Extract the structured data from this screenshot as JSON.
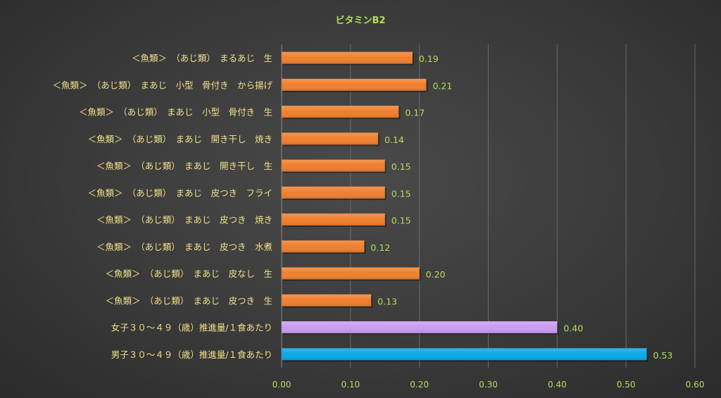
{
  "chart_data": {
    "type": "bar",
    "orientation": "horizontal",
    "title": "ビタミンB2",
    "categories": [
      "＜魚類＞　（あじ類）　まるあじ　生",
      "＜魚類＞　（あじ類）　まあじ　小型　骨付き　から揚げ",
      "＜魚類＞　（あじ類）　まあじ　小型　骨付き　生",
      "＜魚類＞　（あじ類）　まあじ　開き干し　焼き",
      "＜魚類＞　（あじ類）　まあじ　開き干し　生",
      "＜魚類＞　（あじ類）　まあじ　皮つき　フライ",
      "＜魚類＞　（あじ類）　まあじ　皮つき　焼き",
      "＜魚類＞　（あじ類）　まあじ　皮つき　水煮",
      "＜魚類＞　（あじ類）　まあじ　皮なし　生",
      "＜魚類＞　（あじ類）　まあじ　皮つき　生",
      "女子３０～４９（歳）推進量/１食あたり",
      "男子３０～４９（歳）推進量/１食あたり"
    ],
    "values": [
      0.19,
      0.21,
      0.17,
      0.14,
      0.15,
      0.15,
      0.15,
      0.12,
      0.2,
      0.13,
      0.4,
      0.53
    ],
    "value_labels": [
      "0.19",
      "0.21",
      "0.17",
      "0.14",
      "0.15",
      "0.15",
      "0.15",
      "0.12",
      "0.20",
      "0.13",
      "0.40",
      "0.53"
    ],
    "bar_colors": [
      "#f07f2e",
      "#f07f2e",
      "#f07f2e",
      "#f07f2e",
      "#f07f2e",
      "#f07f2e",
      "#f07f2e",
      "#f07f2e",
      "#f07f2e",
      "#f07f2e",
      "#c99cf2",
      "#0aa8e8"
    ],
    "xlim": [
      0,
      0.6
    ],
    "x_ticks": [
      "0.00",
      "0.10",
      "0.20",
      "0.30",
      "0.40",
      "0.50",
      "0.60"
    ],
    "grid": true,
    "legend": "none",
    "colors": {
      "title": "#b5dd5a",
      "tick_labels": "#b5dd5a",
      "data_labels": "#b5dd5a",
      "category_labels": "#f2e08a",
      "gridline": "#6a6a6a"
    }
  }
}
